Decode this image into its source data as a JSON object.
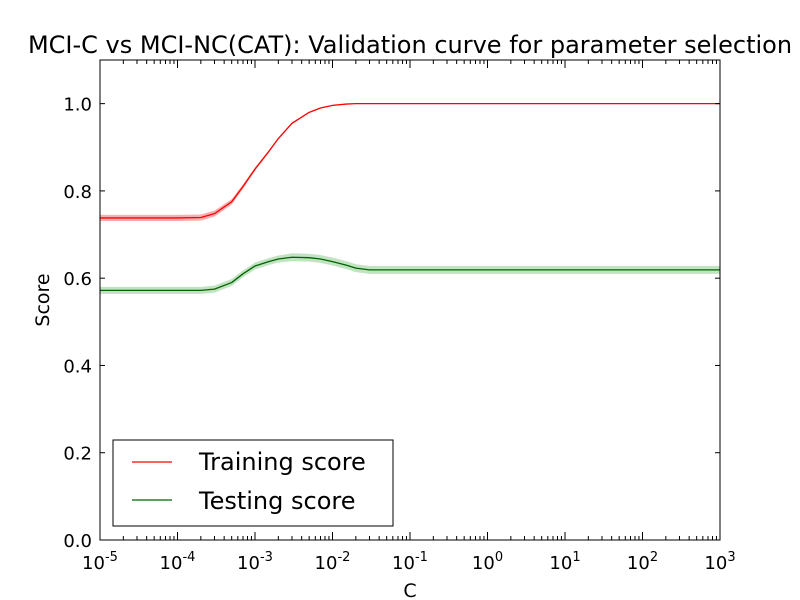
{
  "chart_data": {
    "type": "line",
    "title": "MCI-C vs MCI-NC(CAT): Validation curve for parameter selection",
    "xlabel": "C",
    "ylabel": "Score",
    "x_scale": "log",
    "xlim": [
      1e-05,
      1000
    ],
    "ylim": [
      0.0,
      1.1
    ],
    "grid": false,
    "legend_position": "lower-left",
    "x_ticks": [
      {
        "base": "10",
        "exp": "-5",
        "value": 1e-05
      },
      {
        "base": "10",
        "exp": "-4",
        "value": 0.0001
      },
      {
        "base": "10",
        "exp": "-3",
        "value": 0.001
      },
      {
        "base": "10",
        "exp": "-2",
        "value": 0.01
      },
      {
        "base": "10",
        "exp": "-1",
        "value": 0.1
      },
      {
        "base": "10",
        "exp": "0",
        "value": 1
      },
      {
        "base": "10",
        "exp": "1",
        "value": 10
      },
      {
        "base": "10",
        "exp": "2",
        "value": 100
      },
      {
        "base": "10",
        "exp": "3",
        "value": 1000
      }
    ],
    "y_ticks": [
      "0.0",
      "0.2",
      "0.4",
      "0.6",
      "0.8",
      "1.0"
    ],
    "x": [
      1e-05,
      0.0001,
      0.0002,
      0.0003,
      0.0005,
      0.0007,
      0.001,
      0.0015,
      0.002,
      0.003,
      0.005,
      0.007,
      0.01,
      0.015,
      0.02,
      0.03,
      0.05,
      0.1,
      1,
      10,
      100,
      1000
    ],
    "series": [
      {
        "name": "Training score",
        "color": "#ff0000",
        "band_color": "#f4a0a0",
        "values": [
          0.738,
          0.738,
          0.739,
          0.748,
          0.775,
          0.81,
          0.85,
          0.89,
          0.92,
          0.955,
          0.98,
          0.99,
          0.996,
          0.999,
          1.0,
          1.0,
          1.0,
          1.0,
          1.0,
          1.0,
          1.0,
          1.0
        ],
        "band": [
          0.007,
          0.007,
          0.007,
          0.007,
          0.006,
          0.005,
          0.004,
          0.003,
          0.002,
          0.002,
          0.001,
          0.001,
          0.001,
          0.0,
          0.0,
          0.0,
          0.0,
          0.0,
          0.0,
          0.0,
          0.0,
          0.0
        ]
      },
      {
        "name": "Testing score",
        "color": "#006400",
        "band_color": "#b7deb7",
        "values": [
          0.572,
          0.572,
          0.572,
          0.575,
          0.59,
          0.61,
          0.628,
          0.638,
          0.644,
          0.648,
          0.647,
          0.644,
          0.638,
          0.63,
          0.623,
          0.619,
          0.619,
          0.619,
          0.619,
          0.619,
          0.619,
          0.619
        ],
        "band": [
          0.008,
          0.008,
          0.008,
          0.008,
          0.008,
          0.008,
          0.008,
          0.008,
          0.008,
          0.009,
          0.009,
          0.009,
          0.009,
          0.009,
          0.009,
          0.009,
          0.009,
          0.009,
          0.009,
          0.009,
          0.009,
          0.009
        ]
      }
    ]
  }
}
